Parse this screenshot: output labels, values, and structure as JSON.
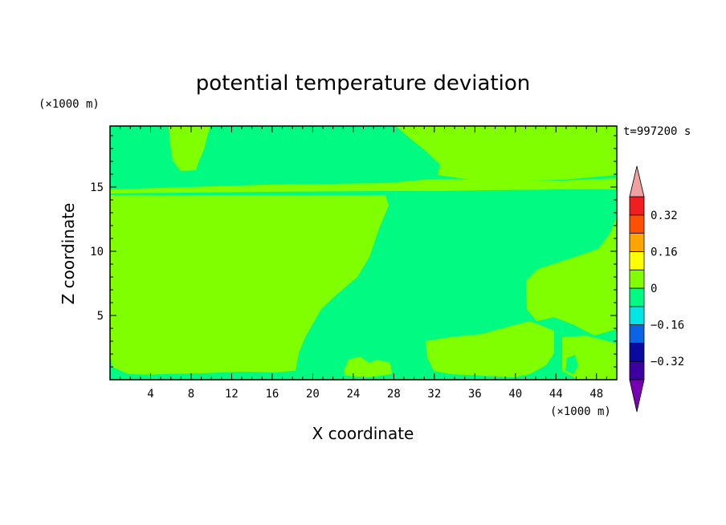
{
  "chart_data": {
    "type": "heatmap",
    "title": "potential temperature deviation",
    "time_label": "t=997200 s",
    "xlabel": "X coordinate",
    "ylabel": "Z coordinate",
    "x_unit": "(×1000 m)",
    "y_unit": "(×1000 m)",
    "xlim": [
      0,
      50
    ],
    "ylim": [
      0,
      19.75
    ],
    "x_ticks": [
      "4",
      "8",
      "12",
      "16",
      "20",
      "24",
      "28",
      "32",
      "36",
      "40",
      "44",
      "48"
    ],
    "y_ticks": [
      "5",
      "10",
      "15"
    ],
    "colorbar": {
      "levels": [
        -0.4,
        -0.32,
        -0.24,
        -0.16,
        -0.08,
        0,
        0.08,
        0.16,
        0.24,
        0.32,
        0.4
      ],
      "tick_labels": [
        "0.32",
        "0.16",
        "0",
        "−0.16",
        "−0.32"
      ],
      "colors": [
        "#3C00A0",
        "#0A0AA0",
        "#0A64E6",
        "#00E6E6",
        "#00FA82",
        "#80FF00",
        "#FFFF00",
        "#FFA500",
        "#FF5000",
        "#F01E1E"
      ],
      "under_color": "#7800B4",
      "over_color": "#F0A0A0"
    },
    "regions": [
      {
        "band": "-0.08 to 0",
        "color": "#00FA82",
        "extent": "background: upper layer z>15 and right-central column"
      },
      {
        "band": "0 to 0.08",
        "color": "#80FF00",
        "extent": "left block x<18, z<15; thin layer near z=15; lower-right lobes"
      }
    ]
  }
}
